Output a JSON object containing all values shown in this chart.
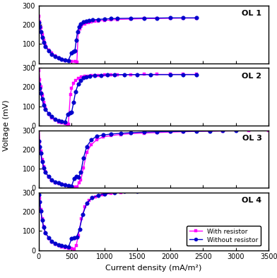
{
  "title": "",
  "xlabel": "Current density (mA/m²)",
  "ylabel": "Voltage (mV)",
  "xlim": [
    0,
    3500
  ],
  "ylim": [
    0,
    300
  ],
  "xticks": [
    0,
    500,
    1000,
    1500,
    2000,
    2500,
    3000,
    3500
  ],
  "yticks": [
    0,
    100,
    200,
    300
  ],
  "subplot_labels": [
    "OL 1",
    "OL 2",
    "OL 3",
    "OL 4"
  ],
  "legend_labels": [
    "With resistor",
    "Without resistor"
  ],
  "with_resistor_color": "#FF00FF",
  "without_resistor_color": "#0000CD",
  "OL1": {
    "with_resistor_x": [
      5,
      15,
      30,
      50,
      75,
      100,
      150,
      200,
      250,
      300,
      350,
      400,
      450,
      500,
      550,
      580,
      600,
      620,
      650,
      700,
      750,
      800,
      850,
      900,
      1000,
      1100,
      1200,
      1400,
      1600,
      1800,
      2000,
      2200,
      2400
    ],
    "with_resistor_y": [
      245,
      215,
      185,
      150,
      120,
      95,
      70,
      52,
      38,
      28,
      20,
      15,
      12,
      10,
      8,
      7,
      160,
      180,
      195,
      205,
      210,
      215,
      218,
      220,
      223,
      225,
      228,
      230,
      232,
      233,
      234,
      235,
      235
    ],
    "without_resistor_x": [
      5,
      15,
      30,
      50,
      75,
      100,
      150,
      200,
      250,
      300,
      350,
      400,
      450,
      500,
      530,
      550,
      570,
      590,
      610,
      640,
      680,
      720,
      760,
      820,
      900,
      1000,
      1100,
      1200,
      1400,
      1600,
      1800,
      2000,
      2200,
      2400
    ],
    "without_resistor_y": [
      210,
      190,
      165,
      135,
      108,
      88,
      65,
      48,
      35,
      27,
      22,
      18,
      15,
      55,
      60,
      65,
      120,
      165,
      190,
      205,
      215,
      220,
      222,
      225,
      228,
      230,
      232,
      233,
      234,
      235,
      235,
      236,
      236,
      236
    ]
  },
  "OL2": {
    "with_resistor_x": [
      5,
      15,
      30,
      50,
      75,
      100,
      150,
      200,
      250,
      300,
      350,
      400,
      430,
      450,
      480,
      500,
      530,
      560,
      600,
      650,
      700,
      750,
      800,
      850,
      900,
      1000,
      1100,
      1200,
      1400,
      1600,
      1800,
      2000,
      2200,
      2400
    ],
    "with_resistor_y": [
      285,
      240,
      200,
      158,
      120,
      90,
      60,
      40,
      28,
      20,
      15,
      10,
      8,
      8,
      160,
      195,
      220,
      235,
      245,
      252,
      256,
      258,
      260,
      261,
      262,
      263,
      264,
      264,
      265,
      266,
      266,
      266,
      266,
      266
    ],
    "without_resistor_x": [
      5,
      15,
      30,
      50,
      75,
      100,
      150,
      200,
      250,
      300,
      350,
      400,
      440,
      470,
      500,
      530,
      560,
      600,
      640,
      680,
      720,
      780,
      850,
      950,
      1050,
      1150,
      1300,
      1500,
      1700,
      2000,
      2200,
      2400
    ],
    "without_resistor_y": [
      215,
      195,
      168,
      138,
      108,
      85,
      63,
      46,
      34,
      26,
      22,
      18,
      60,
      65,
      70,
      120,
      175,
      215,
      235,
      248,
      254,
      258,
      260,
      262,
      263,
      264,
      265,
      265,
      265,
      265,
      265,
      265
    ]
  },
  "OL3": {
    "with_resistor_x": [
      5,
      15,
      30,
      50,
      75,
      100,
      150,
      200,
      250,
      300,
      350,
      400,
      450,
      500,
      550,
      580,
      610,
      640,
      680,
      730,
      800,
      880,
      980,
      1100,
      1250,
      1400,
      1600,
      1800,
      2000,
      2200,
      2400,
      2600,
      2800,
      3000,
      3200,
      3500
    ],
    "with_resistor_y": [
      315,
      240,
      190,
      148,
      110,
      85,
      55,
      38,
      28,
      22,
      18,
      14,
      10,
      8,
      6,
      6,
      25,
      40,
      105,
      185,
      225,
      250,
      265,
      272,
      278,
      282,
      285,
      288,
      290,
      292,
      294,
      295,
      296,
      297,
      298,
      298
    ],
    "without_resistor_x": [
      5,
      15,
      30,
      50,
      75,
      100,
      150,
      200,
      250,
      300,
      350,
      400,
      450,
      500,
      540,
      570,
      600,
      640,
      680,
      730,
      800,
      880,
      980,
      1100,
      1250,
      1400,
      1600,
      1800,
      2000,
      2200,
      2400,
      2600,
      2800,
      3000
    ],
    "without_resistor_y": [
      245,
      215,
      180,
      138,
      105,
      82,
      58,
      42,
      32,
      25,
      20,
      15,
      12,
      10,
      50,
      60,
      55,
      80,
      155,
      215,
      250,
      268,
      275,
      280,
      284,
      287,
      290,
      292,
      293,
      294,
      295,
      296,
      297,
      298
    ]
  },
  "OL4": {
    "with_resistor_x": [
      5,
      15,
      30,
      50,
      75,
      100,
      150,
      200,
      250,
      300,
      350,
      400,
      450,
      500,
      540,
      570,
      600,
      650,
      700,
      770,
      860,
      970,
      1100,
      1250,
      1400,
      1600,
      1800,
      2000,
      2200,
      2500,
      2800,
      3200,
      3500
    ],
    "with_resistor_y": [
      340,
      270,
      210,
      163,
      122,
      92,
      62,
      44,
      32,
      24,
      18,
      14,
      10,
      8,
      7,
      25,
      75,
      165,
      225,
      260,
      278,
      288,
      295,
      300,
      305,
      308,
      310,
      312,
      314,
      316,
      318,
      320,
      320
    ],
    "without_resistor_x": [
      5,
      15,
      30,
      50,
      75,
      100,
      150,
      200,
      250,
      300,
      350,
      400,
      450,
      500,
      540,
      580,
      620,
      670,
      730,
      810,
      900,
      1000,
      1150,
      1300,
      1500,
      1700,
      2000,
      2300,
      2700,
      3100,
      3500
    ],
    "without_resistor_y": [
      290,
      250,
      205,
      158,
      118,
      92,
      65,
      48,
      36,
      28,
      24,
      20,
      16,
      60,
      65,
      70,
      110,
      185,
      245,
      272,
      285,
      293,
      300,
      305,
      308,
      311,
      314,
      316,
      318,
      320,
      320
    ]
  }
}
